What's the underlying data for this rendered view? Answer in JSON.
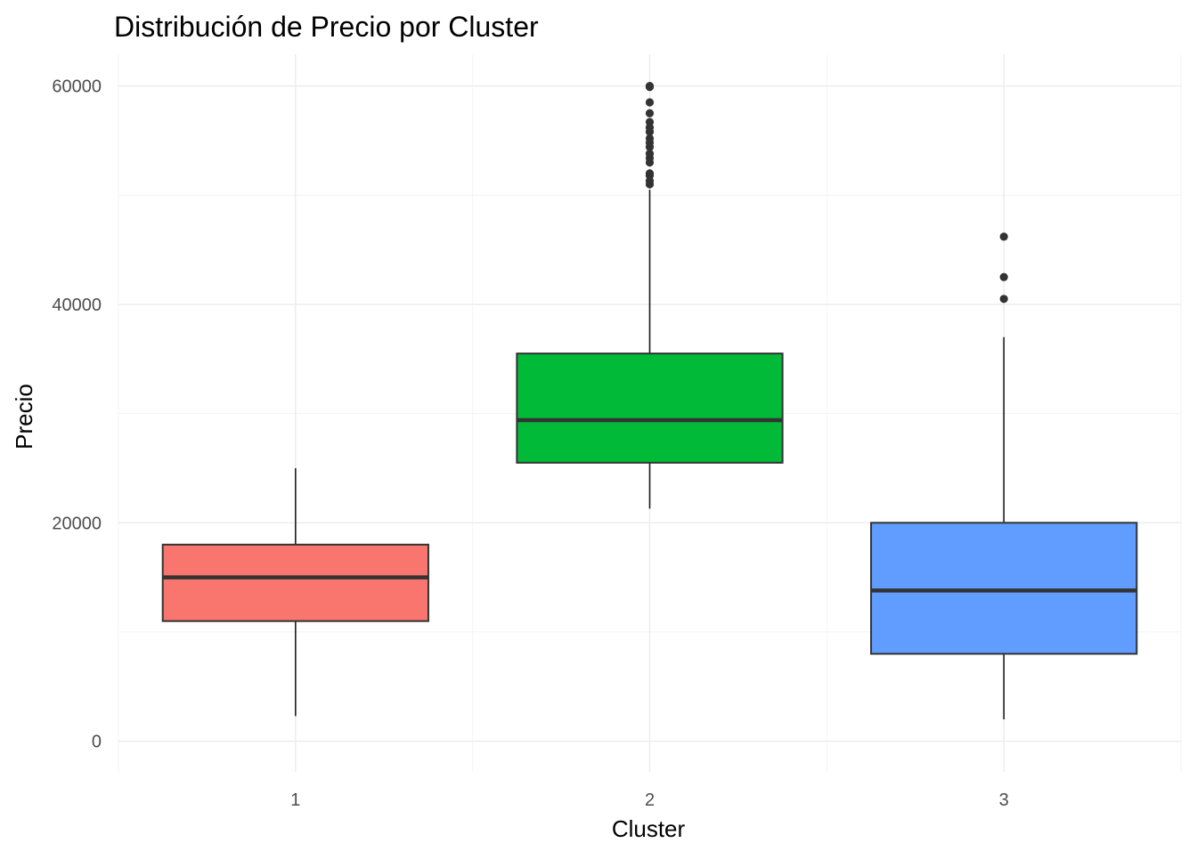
{
  "chart_data": {
    "type": "boxplot",
    "title": "Distribución de Precio por Cluster",
    "xlabel": "Cluster",
    "ylabel": "Precio",
    "categories": [
      "1",
      "2",
      "3"
    ],
    "ylim": [
      -2800,
      62900
    ],
    "yticks": [
      0,
      20000,
      40000,
      60000
    ],
    "ytick_labels": [
      "0",
      "20000",
      "40000",
      "60000"
    ],
    "grid": true,
    "legend": "none",
    "boxes": [
      {
        "category": "1",
        "fill": "#F8766D",
        "whisker_low": 2300,
        "q1": 11000,
        "median": 15000,
        "q3": 18000,
        "whisker_high": 25000,
        "outliers": []
      },
      {
        "category": "2",
        "fill": "#00BA38",
        "whisker_low": 21300,
        "q1": 25500,
        "median": 29400,
        "q3": 35500,
        "whisker_high": 50500,
        "outliers": [
          51000,
          51300,
          51800,
          52000,
          53000,
          53400,
          53800,
          54400,
          54800,
          55200,
          55800,
          56200,
          56700,
          57500,
          58500,
          59900,
          60000
        ]
      },
      {
        "category": "3",
        "fill": "#619CFF",
        "whisker_low": 2000,
        "q1": 8000,
        "median": 13800,
        "q3": 20000,
        "whisker_high": 37000,
        "outliers": [
          40500,
          42500,
          46200
        ]
      }
    ]
  }
}
